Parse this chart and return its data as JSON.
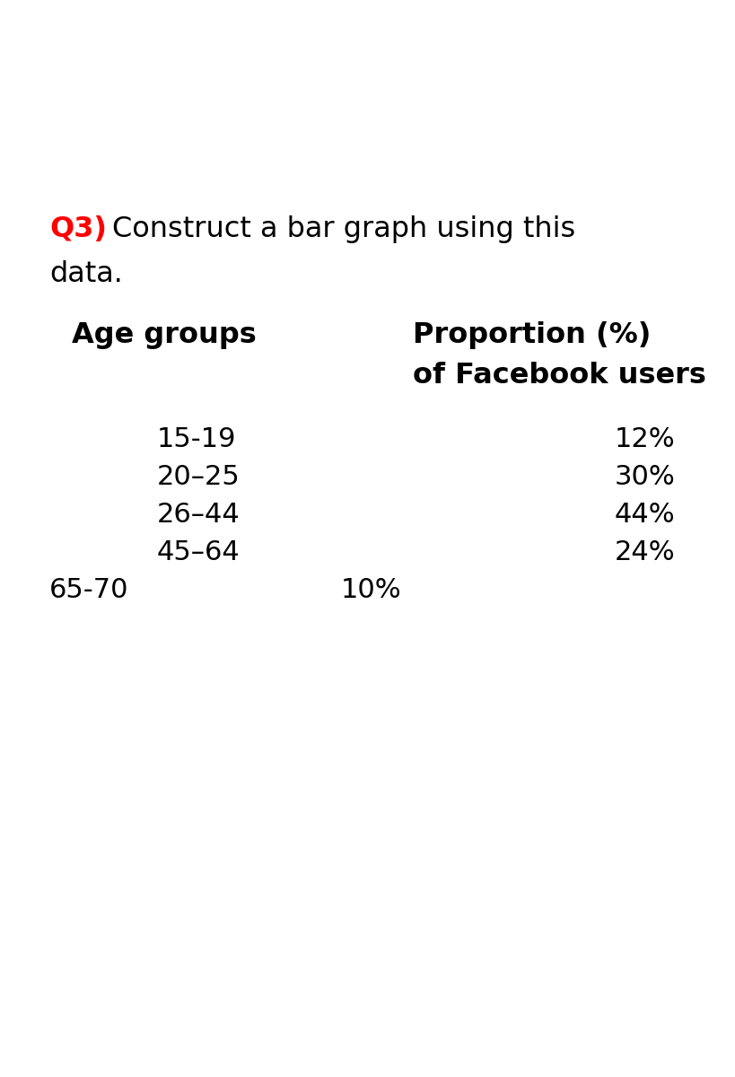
{
  "q3_label": "Q3)",
  "q3_color": "#ff0000",
  "question_line1": "Construct a bar graph using this",
  "question_line2": "data.",
  "col1_header": "Age groups",
  "col2_header_line1": "Proportion (%)",
  "col2_header_line2": "of Facebook users",
  "age_groups": [
    "15-19",
    "20–25",
    "26–44",
    "45–64",
    "65-70"
  ],
  "proportions": [
    "12%",
    "30%",
    "44%",
    "24%",
    "10%"
  ],
  "background_color": "#ffffff",
  "text_color": "#000000",
  "question_fontsize": 23,
  "header_fontsize": 23,
  "data_fontsize": 22
}
